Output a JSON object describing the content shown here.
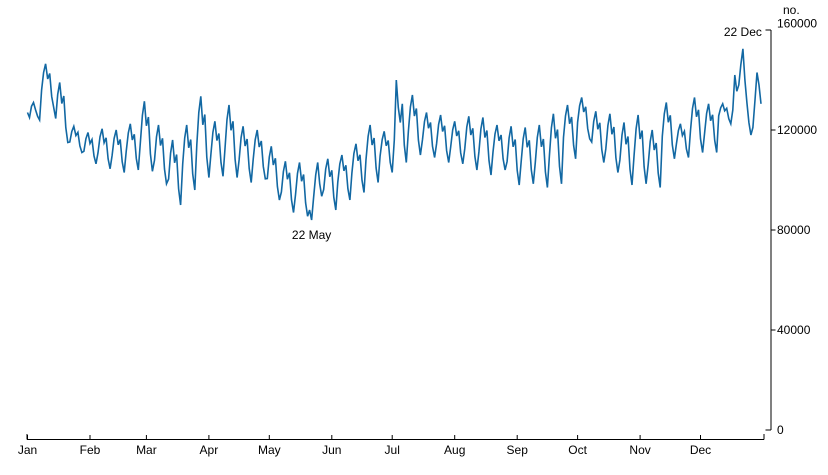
{
  "chart_data": {
    "type": "line",
    "grid": "off",
    "legend": "none",
    "x_axis": {
      "tick_labels": [
        "Jan",
        "Feb",
        "Mar",
        "Apr",
        "May",
        "Jun",
        "Jul",
        "Aug",
        "Sep",
        "Oct",
        "Nov",
        "Dec"
      ],
      "month_start_days": [
        0,
        31,
        59,
        90,
        120,
        151,
        181,
        212,
        243,
        273,
        304,
        334
      ],
      "days_in_year": 365
    },
    "y_axis": {
      "label": "no.",
      "ticks": [
        0,
        40000,
        80000,
        120000,
        160000
      ],
      "tick_labels": [
        "0",
        "40000",
        "80000",
        "120000",
        "160000"
      ],
      "range": [
        0,
        160000
      ]
    },
    "annotations": [
      {
        "text": "22 May",
        "day_index": 141,
        "value": 84000,
        "placement": "below"
      },
      {
        "text": "22 Dec",
        "day_index": 355,
        "value": 152500,
        "placement": "above"
      }
    ],
    "series": [
      {
        "name": "daily-count",
        "color": "#1268a3",
        "values": [
          127000,
          125000,
          129500,
          131000,
          128000,
          125500,
          124000,
          136000,
          143000,
          146500,
          140400,
          142600,
          133400,
          129000,
          124600,
          134200,
          139000,
          130600,
          133600,
          121000,
          115000,
          115200,
          119400,
          121500,
          117800,
          119100,
          113600,
          111000,
          111500,
          116500,
          119000,
          114600,
          116200,
          109600,
          106500,
          110900,
          117300,
          120500,
          114900,
          116900,
          108500,
          104500,
          109800,
          116600,
          120000,
          114100,
          116200,
          107300,
          103000,
          111400,
          118800,
          122500,
          116000,
          118300,
          108600,
          104000,
          114700,
          125900,
          131500,
          121700,
          125200,
          110500,
          103500,
          107900,
          117300,
          122000,
          113800,
          116700,
          104400,
          98500,
          100400,
          110800,
          116000,
          106900,
          110200,
          96500,
          90000,
          106400,
          116800,
          122000,
          112900,
          116200,
          102500,
          96000,
          114000,
          127000,
          133500,
          122100,
          126200,
          109100,
          101000,
          110300,
          119100,
          123500,
          115800,
          118600,
          107000,
          101500,
          112600,
          124200,
          130000,
          119900,
          123500,
          108300,
          101000,
          108000,
          117000,
          121500,
          113600,
          116400,
          104600,
          99000,
          108300,
          116100,
          120000,
          113200,
          115600,
          105400,
          100500,
          100600,
          109200,
          113500,
          106000,
          108700,
          97400,
          92000,
          95200,
          103400,
          107500,
          100300,
          102900,
          92100,
          87000,
          94100,
          102700,
          107000,
          99500,
          102200,
          90900,
          85500,
          88000,
          84000,
          93000,
          102000,
          107000,
          98500,
          93500,
          96200,
          104400,
          108500,
          101300,
          103900,
          93100,
          88000,
          99200,
          106400,
          110000,
          103700,
          105900,
          96500,
          92000,
          102800,
          110600,
          114500,
          107700,
          110100,
          99900,
          95000,
          108200,
          117400,
          122000,
          114000,
          116800,
          104800,
          99000,
          109600,
          116200,
          119500,
          113700,
          115800,
          107100,
          103000,
          116000,
          140000,
          129000,
          123000,
          130500,
          114000,
          107000,
          119600,
          129200,
          134000,
          125600,
          128600,
          116000,
          110000,
          116200,
          123400,
          127000,
          120700,
          123000,
          113500,
          109000,
          114600,
          122200,
          126000,
          119400,
          121700,
          111800,
          107000,
          113300,
          120100,
          123500,
          117600,
          119700,
          110800,
          106500,
          112600,
          121200,
          125500,
          118000,
          120700,
          109400,
          104000,
          111200,
          120400,
          125000,
          117000,
          119800,
          107800,
          102000,
          111200,
          118400,
          122000,
          115700,
          118000,
          108500,
          104000,
          107400,
          116800,
          121500,
          113300,
          116200,
          103900,
          98000,
          107500,
          116500,
          121000,
          113100,
          115900,
          104100,
          98500,
          107000,
          117000,
          122000,
          113300,
          116400,
          103300,
          97000,
          109700,
          120900,
          126500,
          116700,
          120200,
          105500,
          98500,
          117100,
          125700,
          130000,
          122500,
          125200,
          113900,
          108500,
          123100,
          129700,
          133000,
          127200,
          129300,
          120600,
          116500,
          115200,
          123400,
          127500,
          120300,
          122900,
          112100,
          107000,
          112400,
          121800,
          126500,
          118300,
          121200,
          108900,
          103000,
          108000,
          118000,
          123000,
          114300,
          117400,
          104300,
          98000,
          109500,
          120500,
          126000,
          116400,
          119800,
          105400,
          98500,
          106200,
          115400,
          120000,
          112000,
          114800,
          102800,
          97000,
          117500,
          126500,
          131000,
          123100,
          125900,
          114100,
          108500,
          114400,
          119800,
          122500,
          117800,
          119500,
          112400,
          109000,
          119800,
          128600,
          133000,
          125300,
          128100,
          116500,
          111000,
          118800,
          126600,
          130500,
          123700,
          126100,
          115900,
          111000,
          125700,
          128900,
          130500,
          127700,
          128700,
          124500,
          122500,
          128000,
          142000,
          135500,
          138000,
          146000,
          152500,
          140000,
          131000,
          123000,
          118000,
          121000,
          132000,
          143000,
          138000,
          130500
        ]
      }
    ]
  },
  "colors": {
    "line": "#1268a3",
    "axis": "#000000",
    "labels": "#000000",
    "background": "#ffffff"
  }
}
